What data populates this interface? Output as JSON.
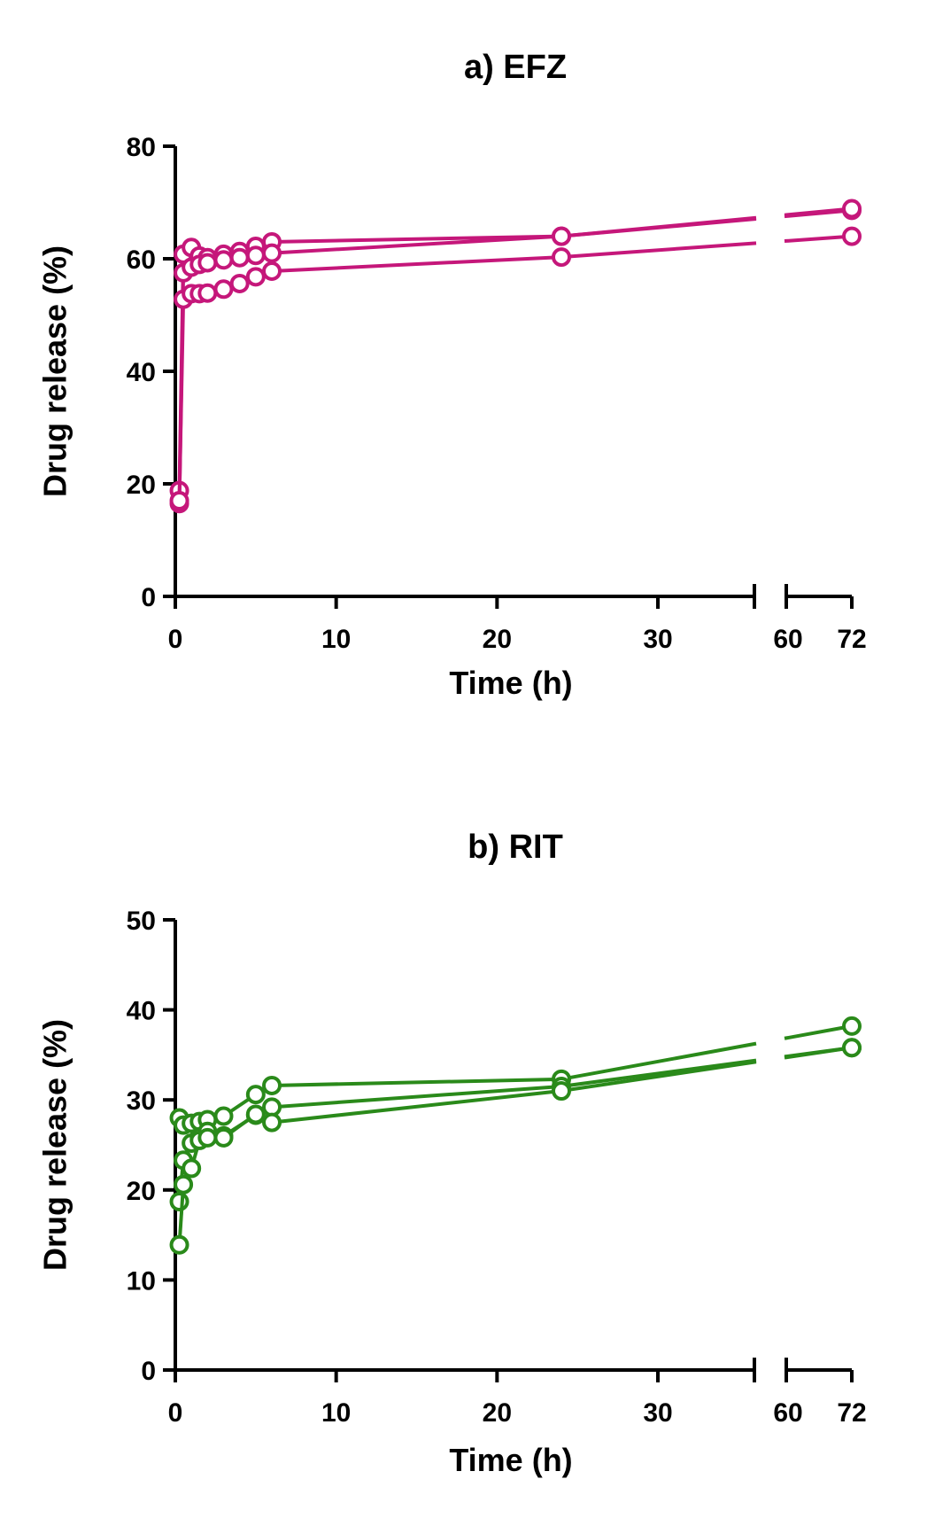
{
  "chart_data": [
    {
      "type": "line",
      "title": "a) EFZ",
      "xlabel": "Time (h)",
      "ylabel": "Drug release (%)",
      "ylim": [
        0,
        80
      ],
      "yticks": [
        "0",
        "20",
        "40",
        "60",
        "80"
      ],
      "x_break": [
        36,
        60
      ],
      "xticks": [
        "0",
        "10",
        "20",
        "30",
        "60",
        "72"
      ],
      "color": "#c5177a",
      "marker": "open-circle",
      "grid": false,
      "series": [
        {
          "x": [
            0.25,
            0.5,
            1,
            1.5,
            2,
            3,
            4,
            5,
            6,
            24,
            72
          ],
          "values": [
            18.8,
            60.8,
            62.0,
            60.5,
            60.2,
            60.8,
            61.3,
            62.2,
            63.0,
            64.0,
            68.6
          ]
        },
        {
          "x": [
            0.25,
            0.5,
            1,
            1.5,
            2,
            3,
            4,
            5,
            6,
            24,
            72
          ],
          "values": [
            16.5,
            57.5,
            58.5,
            59.0,
            59.3,
            59.8,
            60.2,
            60.6,
            61.0,
            64.0,
            68.9
          ]
        },
        {
          "x": [
            0.25,
            0.5,
            1,
            1.5,
            2,
            3,
            4,
            5,
            6,
            24,
            72
          ],
          "values": [
            17.0,
            52.8,
            53.8,
            53.8,
            53.9,
            54.6,
            55.6,
            56.8,
            57.8,
            60.3,
            64.0
          ]
        }
      ]
    },
    {
      "type": "line",
      "title": "b) RIT",
      "xlabel": "Time (h)",
      "ylabel": "Drug release (%)",
      "ylim": [
        0,
        50
      ],
      "yticks": [
        "0",
        "10",
        "20",
        "30",
        "40",
        "50"
      ],
      "x_break": [
        36,
        60
      ],
      "xticks": [
        "0",
        "10",
        "20",
        "30",
        "60",
        "72"
      ],
      "color": "#2a8a1a",
      "marker": "open-circle",
      "grid": false,
      "series": [
        {
          "x": [
            0.25,
            0.5,
            1,
            1.5,
            2,
            3,
            5,
            6,
            24,
            72
          ],
          "values": [
            28.0,
            27.2,
            27.4,
            27.6,
            27.8,
            28.2,
            30.6,
            31.6,
            32.3,
            38.2
          ]
        },
        {
          "x": [
            0.25,
            0.5,
            1,
            1.5,
            2,
            3,
            5,
            6,
            24,
            72
          ],
          "values": [
            18.7,
            23.3,
            25.2,
            25.9,
            26.5,
            26.0,
            28.3,
            29.2,
            31.5,
            35.8
          ]
        },
        {
          "x": [
            0.25,
            0.5,
            1,
            1.5,
            2,
            3,
            5,
            6,
            24,
            72
          ],
          "values": [
            13.9,
            20.6,
            22.4,
            25.5,
            25.8,
            25.8,
            28.4,
            27.5,
            31.0,
            35.8
          ]
        }
      ]
    }
  ]
}
